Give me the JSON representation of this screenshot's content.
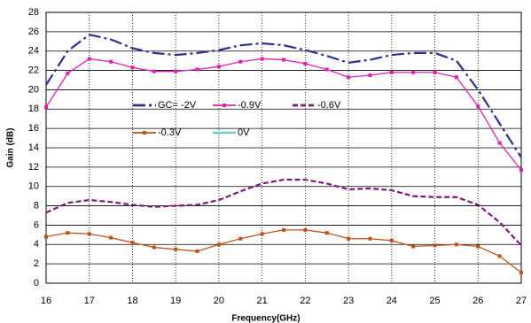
{
  "chart_data": {
    "type": "line",
    "x_label": "Frequency(GHz)",
    "y_label": "Gain (dB)",
    "x": [
      16,
      16.5,
      17,
      17.5,
      18,
      18.5,
      19,
      19.5,
      20,
      20.5,
      21,
      21.5,
      22,
      22.5,
      23,
      23.5,
      24,
      24.5,
      25,
      25.5,
      26,
      26.5,
      27
    ],
    "series": [
      {
        "name": "GC= -2V",
        "color": "#2b2f8f",
        "values": [
          20.5,
          24,
          25.7,
          25.2,
          24.3,
          23.8,
          23.6,
          23.8,
          24.1,
          24.6,
          24.8,
          24.6,
          24.1,
          23.5,
          22.8,
          23.1,
          23.6,
          23.8,
          23.8,
          23,
          20,
          16.5,
          13
        ]
      },
      {
        "name": "-0.9V",
        "color": "#e020b0",
        "values": [
          18.2,
          21.7,
          23.2,
          22.9,
          22.3,
          21.9,
          21.9,
          22.1,
          22.4,
          22.9,
          23.2,
          23.1,
          22.7,
          22.1,
          21.3,
          21.5,
          21.8,
          21.8,
          21.8,
          21.3,
          18.3,
          14.5,
          11.7
        ]
      },
      {
        "name": "-0.6V",
        "color": "#7a1a7a",
        "values": [
          7.3,
          8.3,
          8.6,
          8.4,
          8.1,
          7.9,
          8.0,
          8.1,
          8.6,
          9.5,
          10.3,
          10.7,
          10.7,
          10.3,
          9.7,
          9.8,
          9.6,
          9.0,
          8.9,
          8.9,
          8.1,
          6.3,
          3.9
        ]
      },
      {
        "name": "-0.3V",
        "color": "#c0501c",
        "values": [
          4.8,
          5.2,
          5.1,
          4.7,
          4.2,
          3.7,
          3.5,
          3.3,
          4.0,
          4.6,
          5.1,
          5.5,
          5.5,
          5.2,
          4.6,
          4.6,
          4.4,
          3.8,
          3.9,
          4.0,
          3.8,
          2.8,
          1.1
        ]
      },
      {
        "name": "0V",
        "color": "#66cccc",
        "values": [
          null,
          null,
          null,
          null,
          null,
          null,
          null,
          null,
          null,
          null,
          null,
          null,
          null,
          null,
          null,
          null,
          null,
          null,
          null,
          null,
          null,
          null,
          null
        ]
      }
    ],
    "xlim": [
      16,
      27
    ],
    "xticks": [
      16,
      17,
      18,
      19,
      20,
      21,
      22,
      23,
      24,
      25,
      26,
      27
    ],
    "ylim": [
      0,
      28
    ],
    "yticks": [
      0,
      2,
      4,
      6,
      8,
      10,
      12,
      14,
      16,
      18,
      20,
      22,
      24,
      26,
      28
    ],
    "grid": true
  }
}
